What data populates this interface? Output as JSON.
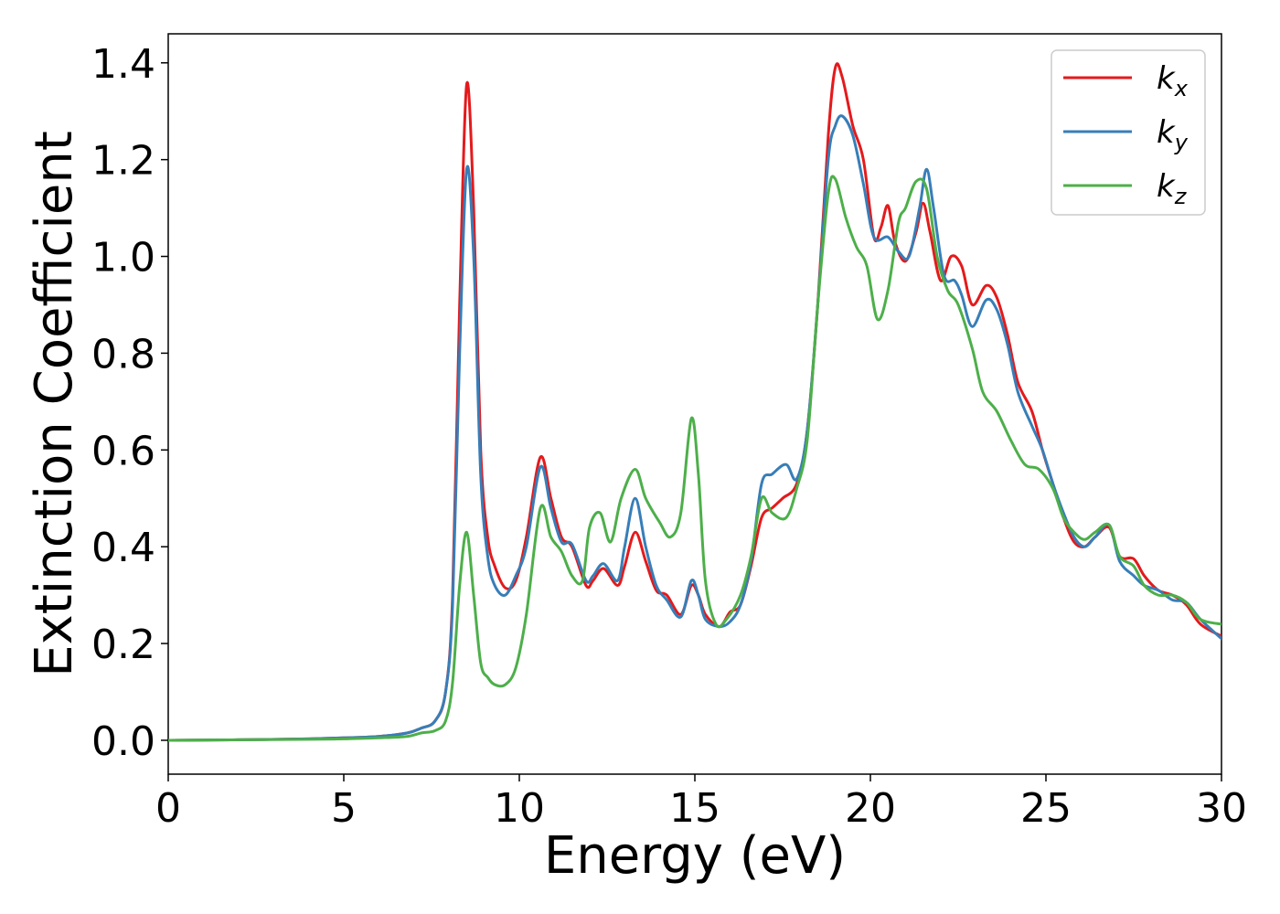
{
  "chart_data": {
    "type": "line",
    "title": "",
    "xlabel": "Energy (eV)",
    "ylabel": "Extinction Coefficient",
    "xlim": [
      0,
      30
    ],
    "ylim": [
      -0.07,
      1.46
    ],
    "xticks": [
      0,
      5,
      10,
      15,
      20,
      25,
      30
    ],
    "xtick_labels": [
      "0",
      "5",
      "10",
      "15",
      "20",
      "25",
      "30"
    ],
    "yticks": [
      0.0,
      0.2,
      0.4,
      0.6,
      0.8,
      1.0,
      1.2,
      1.4
    ],
    "ytick_labels": [
      "0.0",
      "0.2",
      "0.4",
      "0.6",
      "0.8",
      "1.0",
      "1.2",
      "1.4"
    ],
    "grid": false,
    "legend": "top-right",
    "series": [
      {
        "name": "k",
        "subscript": "x",
        "color": "#e41a1c",
        "points": [
          [
            0,
            0
          ],
          [
            2,
            0.001
          ],
          [
            4,
            0.003
          ],
          [
            5,
            0.005
          ],
          [
            6,
            0.008
          ],
          [
            6.8,
            0.015
          ],
          [
            7.2,
            0.025
          ],
          [
            7.6,
            0.04
          ],
          [
            7.9,
            0.1
          ],
          [
            8.1,
            0.3
          ],
          [
            8.3,
            0.9
          ],
          [
            8.5,
            1.355
          ],
          [
            8.7,
            1.1
          ],
          [
            8.9,
            0.6
          ],
          [
            9.1,
            0.42
          ],
          [
            9.3,
            0.36
          ],
          [
            9.6,
            0.315
          ],
          [
            9.9,
            0.33
          ],
          [
            10.2,
            0.42
          ],
          [
            10.6,
            0.585
          ],
          [
            10.9,
            0.5
          ],
          [
            11.2,
            0.42
          ],
          [
            11.5,
            0.4
          ],
          [
            11.9,
            0.32
          ],
          [
            12.1,
            0.33
          ],
          [
            12.4,
            0.355
          ],
          [
            12.8,
            0.32
          ],
          [
            13.0,
            0.36
          ],
          [
            13.3,
            0.43
          ],
          [
            13.6,
            0.37
          ],
          [
            13.9,
            0.31
          ],
          [
            14.2,
            0.3
          ],
          [
            14.6,
            0.26
          ],
          [
            14.9,
            0.32
          ],
          [
            15.1,
            0.3
          ],
          [
            15.3,
            0.26
          ],
          [
            15.7,
            0.235
          ],
          [
            16.0,
            0.265
          ],
          [
            16.3,
            0.28
          ],
          [
            16.6,
            0.36
          ],
          [
            16.9,
            0.46
          ],
          [
            17.2,
            0.48
          ],
          [
            17.5,
            0.5
          ],
          [
            17.9,
            0.53
          ],
          [
            18.2,
            0.64
          ],
          [
            18.5,
            0.9
          ],
          [
            18.8,
            1.25
          ],
          [
            19.0,
            1.39
          ],
          [
            19.2,
            1.37
          ],
          [
            19.5,
            1.27
          ],
          [
            19.8,
            1.2
          ],
          [
            20.1,
            1.04
          ],
          [
            20.3,
            1.06
          ],
          [
            20.5,
            1.105
          ],
          [
            20.7,
            1.03
          ],
          [
            21.0,
            0.99
          ],
          [
            21.3,
            1.05
          ],
          [
            21.5,
            1.11
          ],
          [
            21.7,
            1.05
          ],
          [
            22.0,
            0.95
          ],
          [
            22.3,
            1.0
          ],
          [
            22.6,
            0.98
          ],
          [
            22.9,
            0.9
          ],
          [
            23.3,
            0.94
          ],
          [
            23.6,
            0.915
          ],
          [
            23.9,
            0.84
          ],
          [
            24.2,
            0.74
          ],
          [
            24.6,
            0.68
          ],
          [
            24.9,
            0.6
          ],
          [
            25.2,
            0.53
          ],
          [
            25.5,
            0.46
          ],
          [
            25.8,
            0.41
          ],
          [
            26.1,
            0.4
          ],
          [
            26.4,
            0.42
          ],
          [
            26.8,
            0.44
          ],
          [
            27.1,
            0.38
          ],
          [
            27.5,
            0.375
          ],
          [
            27.8,
            0.34
          ],
          [
            28.2,
            0.31
          ],
          [
            28.6,
            0.3
          ],
          [
            29.0,
            0.28
          ],
          [
            29.4,
            0.24
          ],
          [
            30,
            0.215
          ]
        ]
      },
      {
        "name": "k",
        "subscript": "y",
        "color": "#377eb8",
        "points": [
          [
            0,
            0
          ],
          [
            2,
            0.001
          ],
          [
            4,
            0.003
          ],
          [
            5,
            0.005
          ],
          [
            6,
            0.008
          ],
          [
            6.8,
            0.015
          ],
          [
            7.2,
            0.025
          ],
          [
            7.6,
            0.04
          ],
          [
            7.9,
            0.1
          ],
          [
            8.1,
            0.28
          ],
          [
            8.3,
            0.8
          ],
          [
            8.5,
            1.18
          ],
          [
            8.7,
            1.0
          ],
          [
            8.9,
            0.55
          ],
          [
            9.1,
            0.38
          ],
          [
            9.3,
            0.32
          ],
          [
            9.6,
            0.3
          ],
          [
            9.9,
            0.34
          ],
          [
            10.2,
            0.4
          ],
          [
            10.6,
            0.565
          ],
          [
            10.9,
            0.48
          ],
          [
            11.2,
            0.41
          ],
          [
            11.5,
            0.405
          ],
          [
            11.9,
            0.33
          ],
          [
            12.1,
            0.34
          ],
          [
            12.4,
            0.365
          ],
          [
            12.8,
            0.33
          ],
          [
            13.0,
            0.4
          ],
          [
            13.3,
            0.5
          ],
          [
            13.6,
            0.4
          ],
          [
            13.9,
            0.32
          ],
          [
            14.2,
            0.29
          ],
          [
            14.6,
            0.255
          ],
          [
            14.9,
            0.33
          ],
          [
            15.1,
            0.3
          ],
          [
            15.3,
            0.25
          ],
          [
            15.7,
            0.235
          ],
          [
            16.0,
            0.245
          ],
          [
            16.3,
            0.28
          ],
          [
            16.6,
            0.37
          ],
          [
            16.9,
            0.53
          ],
          [
            17.2,
            0.55
          ],
          [
            17.6,
            0.57
          ],
          [
            17.9,
            0.54
          ],
          [
            18.2,
            0.64
          ],
          [
            18.5,
            0.9
          ],
          [
            18.8,
            1.2
          ],
          [
            19.0,
            1.27
          ],
          [
            19.2,
            1.29
          ],
          [
            19.5,
            1.25
          ],
          [
            19.8,
            1.15
          ],
          [
            20.1,
            1.04
          ],
          [
            20.5,
            1.04
          ],
          [
            20.8,
            1.01
          ],
          [
            21.1,
            1.0
          ],
          [
            21.4,
            1.1
          ],
          [
            21.6,
            1.18
          ],
          [
            21.8,
            1.1
          ],
          [
            22.1,
            0.96
          ],
          [
            22.4,
            0.95
          ],
          [
            22.6,
            0.92
          ],
          [
            22.9,
            0.855
          ],
          [
            23.3,
            0.91
          ],
          [
            23.6,
            0.89
          ],
          [
            23.9,
            0.82
          ],
          [
            24.2,
            0.72
          ],
          [
            24.6,
            0.65
          ],
          [
            24.9,
            0.6
          ],
          [
            25.2,
            0.53
          ],
          [
            25.5,
            0.47
          ],
          [
            25.8,
            0.42
          ],
          [
            26.1,
            0.4
          ],
          [
            26.4,
            0.42
          ],
          [
            26.8,
            0.445
          ],
          [
            27.1,
            0.37
          ],
          [
            27.5,
            0.34
          ],
          [
            27.8,
            0.32
          ],
          [
            28.2,
            0.31
          ],
          [
            28.6,
            0.29
          ],
          [
            29.0,
            0.285
          ],
          [
            29.4,
            0.25
          ],
          [
            30,
            0.21
          ]
        ]
      },
      {
        "name": "k",
        "subscript": "z",
        "color": "#4daf4a",
        "points": [
          [
            0,
            0
          ],
          [
            2,
            0.001
          ],
          [
            4,
            0.002
          ],
          [
            5,
            0.003
          ],
          [
            6,
            0.005
          ],
          [
            6.8,
            0.008
          ],
          [
            7.2,
            0.015
          ],
          [
            7.6,
            0.02
          ],
          [
            7.9,
            0.04
          ],
          [
            8.1,
            0.12
          ],
          [
            8.3,
            0.32
          ],
          [
            8.5,
            0.43
          ],
          [
            8.7,
            0.3
          ],
          [
            8.9,
            0.16
          ],
          [
            9.1,
            0.13
          ],
          [
            9.3,
            0.115
          ],
          [
            9.6,
            0.115
          ],
          [
            9.9,
            0.15
          ],
          [
            10.2,
            0.26
          ],
          [
            10.6,
            0.48
          ],
          [
            10.9,
            0.42
          ],
          [
            11.2,
            0.39
          ],
          [
            11.5,
            0.34
          ],
          [
            11.8,
            0.33
          ],
          [
            12.0,
            0.44
          ],
          [
            12.3,
            0.47
          ],
          [
            12.6,
            0.41
          ],
          [
            12.9,
            0.5
          ],
          [
            13.3,
            0.56
          ],
          [
            13.6,
            0.5
          ],
          [
            14.0,
            0.45
          ],
          [
            14.3,
            0.42
          ],
          [
            14.6,
            0.47
          ],
          [
            14.9,
            0.665
          ],
          [
            15.1,
            0.55
          ],
          [
            15.3,
            0.33
          ],
          [
            15.6,
            0.24
          ],
          [
            15.9,
            0.25
          ],
          [
            16.3,
            0.3
          ],
          [
            16.6,
            0.38
          ],
          [
            16.9,
            0.5
          ],
          [
            17.2,
            0.47
          ],
          [
            17.6,
            0.46
          ],
          [
            17.9,
            0.52
          ],
          [
            18.2,
            0.62
          ],
          [
            18.5,
            0.9
          ],
          [
            18.8,
            1.13
          ],
          [
            19.0,
            1.16
          ],
          [
            19.3,
            1.08
          ],
          [
            19.6,
            1.02
          ],
          [
            19.9,
            0.98
          ],
          [
            20.2,
            0.87
          ],
          [
            20.5,
            0.93
          ],
          [
            20.8,
            1.07
          ],
          [
            21.0,
            1.1
          ],
          [
            21.3,
            1.155
          ],
          [
            21.6,
            1.14
          ],
          [
            21.9,
            1.0
          ],
          [
            22.2,
            0.93
          ],
          [
            22.5,
            0.9
          ],
          [
            22.9,
            0.81
          ],
          [
            23.2,
            0.72
          ],
          [
            23.6,
            0.68
          ],
          [
            24.0,
            0.62
          ],
          [
            24.4,
            0.57
          ],
          [
            24.8,
            0.56
          ],
          [
            25.2,
            0.52
          ],
          [
            25.5,
            0.46
          ],
          [
            25.8,
            0.43
          ],
          [
            26.1,
            0.415
          ],
          [
            26.4,
            0.43
          ],
          [
            26.8,
            0.445
          ],
          [
            27.1,
            0.38
          ],
          [
            27.5,
            0.36
          ],
          [
            27.8,
            0.32
          ],
          [
            28.2,
            0.3
          ],
          [
            28.6,
            0.3
          ],
          [
            29.0,
            0.285
          ],
          [
            29.4,
            0.25
          ],
          [
            30,
            0.24
          ]
        ]
      }
    ]
  }
}
